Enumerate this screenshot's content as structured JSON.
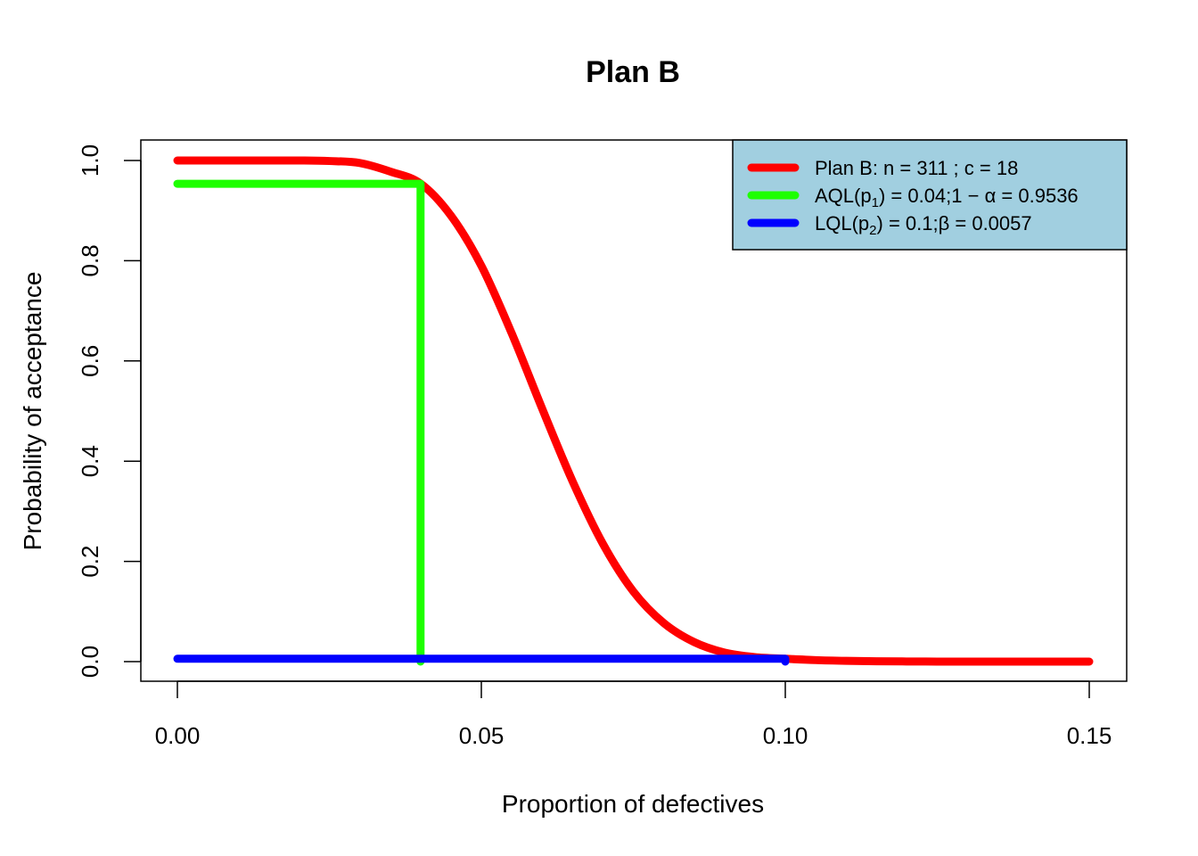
{
  "chart_data": {
    "type": "line",
    "title": "Plan B",
    "xlabel": "Proportion of defectives",
    "ylabel": "Probability of acceptance",
    "xlim": [
      0.0,
      0.15
    ],
    "ylim": [
      0.0,
      1.0
    ],
    "x_ticks": [
      {
        "value": 0.0,
        "label": "0.00"
      },
      {
        "value": 0.05,
        "label": "0.05"
      },
      {
        "value": 0.1,
        "label": "0.10"
      },
      {
        "value": 0.15,
        "label": "0.15"
      }
    ],
    "y_ticks": [
      {
        "value": 0.0,
        "label": "0.0"
      },
      {
        "value": 0.2,
        "label": "0.2"
      },
      {
        "value": 0.4,
        "label": "0.4"
      },
      {
        "value": 0.6,
        "label": "0.6"
      },
      {
        "value": 0.8,
        "label": "0.8"
      },
      {
        "value": 1.0,
        "label": "1.0"
      }
    ],
    "grid": false,
    "legend_position": "top-right",
    "legend_background": "#A1CFE0",
    "plan": {
      "n": 311,
      "c": 18
    },
    "series": [
      {
        "name": "Plan B: n =  311 ; c =  18",
        "kind": "oc_curve",
        "color": "#FF0000",
        "x": [
          0.0,
          0.005,
          0.01,
          0.015,
          0.02,
          0.025,
          0.03,
          0.035,
          0.04,
          0.045,
          0.05,
          0.055,
          0.06,
          0.065,
          0.07,
          0.075,
          0.08,
          0.085,
          0.09,
          0.095,
          0.1,
          0.105,
          0.11,
          0.115,
          0.12,
          0.125,
          0.13,
          0.135,
          0.14,
          0.145,
          0.15
        ],
        "y": [
          1.0,
          1.0,
          1.0,
          1.0,
          1.0,
          0.999,
          0.995,
          0.978,
          0.954,
          0.89,
          0.79,
          0.655,
          0.505,
          0.36,
          0.235,
          0.14,
          0.077,
          0.039,
          0.018,
          0.009,
          0.0057,
          0.003,
          0.0015,
          0.0007,
          0.0003,
          0.0001,
          0.0,
          0.0,
          0.0,
          0.0,
          0.0
        ]
      },
      {
        "name_parts": [
          "AQL",
          "p",
          "1",
          " = 0.04;1 − α = 0.9536"
        ],
        "kind": "aql_marker",
        "color": "#1EFF00",
        "p": 0.04,
        "pa": 0.9536,
        "x": [
          0.0,
          0.04,
          0.04
        ],
        "y": [
          0.9536,
          0.9536,
          0.0
        ]
      },
      {
        "name_parts": [
          "LQL",
          "p",
          "2",
          " = 0.1;β = 0.0057"
        ],
        "kind": "lql_marker",
        "color": "#0000FF",
        "p": 0.1,
        "pa": 0.0057,
        "x": [
          0.0,
          0.1,
          0.1
        ],
        "y": [
          0.0057,
          0.0057,
          0.0
        ]
      }
    ]
  }
}
